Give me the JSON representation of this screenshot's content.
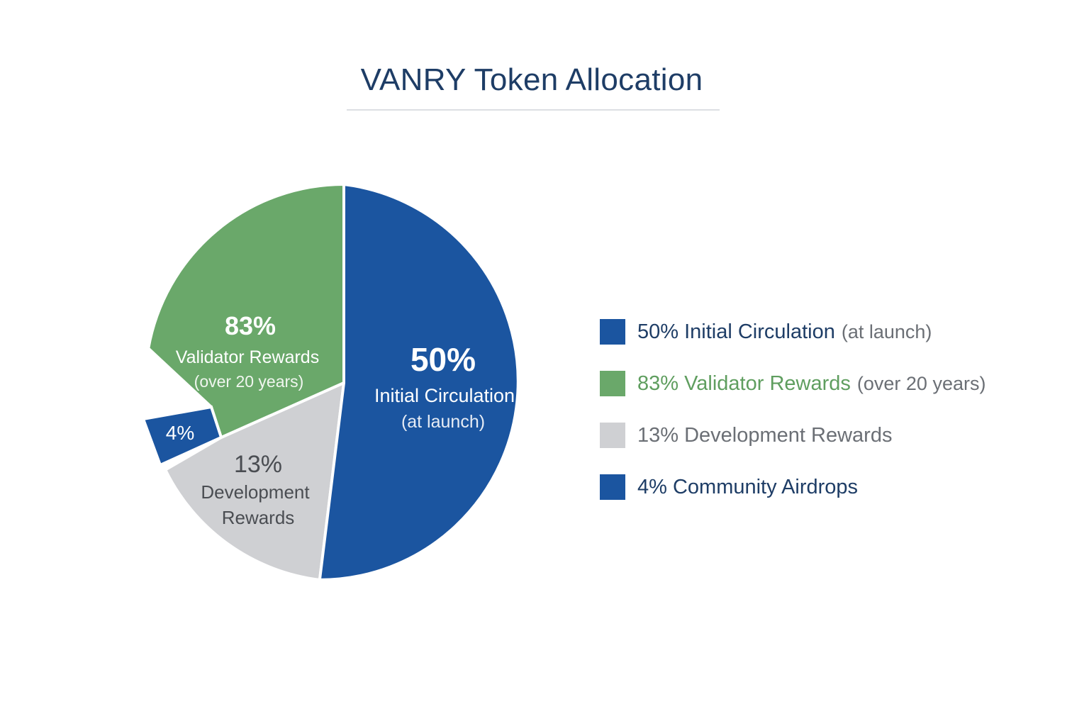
{
  "title": "VANRY Token Allocation",
  "chart_data": {
    "type": "pie",
    "slices": [
      {
        "pct": "50%",
        "label": "Initial Circulation",
        "sublabel": "(at launch)",
        "value": 50,
        "color": "#1b55a0",
        "text_color": "#ffffff",
        "sub_color": "#e6ecf5"
      },
      {
        "pct": "83%",
        "label": "Validator Rewards",
        "sublabel": "(over 20 years)",
        "value": 83,
        "color": "#6aa86a",
        "text_color": "#ffffff",
        "sub_color": "#f0f6ef"
      },
      {
        "pct": "13%",
        "label": "Development Rewards",
        "sublabel": "",
        "value": 13,
        "color": "#cfd0d3",
        "text_color": "#4a4d52",
        "sub_color": "#4a4d52"
      },
      {
        "pct": "4%",
        "label": "Community Airdrops",
        "sublabel": "",
        "value": 4,
        "color": "#1b55a0",
        "text_color": "#ffffff",
        "sub_color": "#ffffff"
      }
    ],
    "slice_labels": {
      "initial": {
        "pct": "50%",
        "line1": "Initial Circulation",
        "line2": "(at launch)"
      },
      "validator": {
        "pct": "83%",
        "line1": "Validator Rewards",
        "line2": "(over 20 years)"
      },
      "development": {
        "pct": "13%",
        "line1": "Development",
        "line2": "Rewards"
      },
      "community": {
        "pct": "4%"
      }
    },
    "legend": [
      {
        "pct": "50%",
        "label": "Initial Circulation",
        "sub": "(at launch)",
        "color": "#1b55a0",
        "text_color": "#1e3d66"
      },
      {
        "pct": "83%",
        "label": "Validator Rewards",
        "sub": "(over 20 years)",
        "color": "#6aa86a",
        "text_color": "#5f9e5f"
      },
      {
        "pct": "13%",
        "label": "Development Rewards",
        "sub": "",
        "color": "#cfd0d3",
        "text_color": "#6b6f75"
      },
      {
        "pct": "4%",
        "label": "Community Airdrops",
        "sub": "",
        "color": "#1b55a0",
        "text_color": "#1e3d66"
      }
    ]
  }
}
